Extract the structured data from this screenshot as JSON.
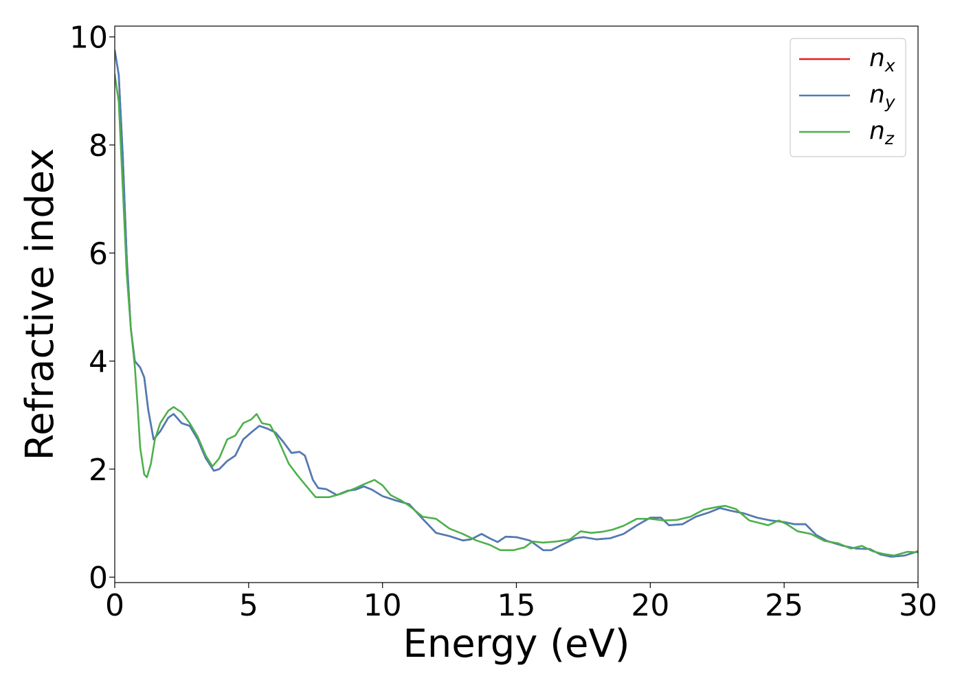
{
  "chart_data": {
    "type": "line",
    "title": "",
    "xlabel": "Energy (eV)",
    "ylabel": "Refractive index",
    "xlim": [
      0,
      30
    ],
    "ylim": [
      -0.1,
      10.2
    ],
    "xticks": [
      0,
      5,
      10,
      15,
      20,
      25,
      30
    ],
    "yticks": [
      0,
      2,
      4,
      6,
      8,
      10
    ],
    "grid": false,
    "legend_position": "top-right",
    "series": [
      {
        "name": "n",
        "subscript": "x",
        "color": "#e41a1c",
        "points": [
          [
            0,
            9.75
          ],
          [
            0.15,
            9.3
          ],
          [
            0.3,
            7.8
          ],
          [
            0.45,
            5.9
          ],
          [
            0.6,
            4.6
          ],
          [
            0.75,
            4.0
          ],
          [
            0.95,
            3.88
          ],
          [
            1.1,
            3.7
          ],
          [
            1.25,
            3.1
          ],
          [
            1.45,
            2.55
          ],
          [
            1.7,
            2.7
          ],
          [
            2.0,
            2.95
          ],
          [
            2.2,
            3.02
          ],
          [
            2.5,
            2.85
          ],
          [
            2.8,
            2.8
          ],
          [
            3.1,
            2.55
          ],
          [
            3.4,
            2.2
          ],
          [
            3.7,
            1.97
          ],
          [
            3.9,
            2.0
          ],
          [
            4.2,
            2.15
          ],
          [
            4.5,
            2.25
          ],
          [
            4.8,
            2.55
          ],
          [
            5.1,
            2.68
          ],
          [
            5.4,
            2.8
          ],
          [
            5.7,
            2.75
          ],
          [
            6.0,
            2.68
          ],
          [
            6.3,
            2.5
          ],
          [
            6.6,
            2.3
          ],
          [
            6.9,
            2.32
          ],
          [
            7.1,
            2.25
          ],
          [
            7.4,
            1.8
          ],
          [
            7.6,
            1.65
          ],
          [
            7.9,
            1.63
          ],
          [
            8.3,
            1.52
          ],
          [
            8.7,
            1.6
          ],
          [
            9.0,
            1.62
          ],
          [
            9.3,
            1.68
          ],
          [
            9.6,
            1.62
          ],
          [
            10.0,
            1.5
          ],
          [
            10.5,
            1.42
          ],
          [
            11.0,
            1.35
          ],
          [
            11.5,
            1.08
          ],
          [
            12.0,
            0.82
          ],
          [
            12.5,
            0.76
          ],
          [
            13.0,
            0.68
          ],
          [
            13.3,
            0.7
          ],
          [
            13.7,
            0.8
          ],
          [
            14.0,
            0.72
          ],
          [
            14.3,
            0.65
          ],
          [
            14.6,
            0.75
          ],
          [
            15.0,
            0.74
          ],
          [
            15.5,
            0.68
          ],
          [
            16.0,
            0.5
          ],
          [
            16.3,
            0.5
          ],
          [
            16.7,
            0.6
          ],
          [
            17.2,
            0.72
          ],
          [
            17.5,
            0.74
          ],
          [
            18.0,
            0.7
          ],
          [
            18.5,
            0.72
          ],
          [
            19.0,
            0.8
          ],
          [
            19.5,
            0.96
          ],
          [
            20.0,
            1.1
          ],
          [
            20.4,
            1.1
          ],
          [
            20.7,
            0.96
          ],
          [
            21.2,
            0.98
          ],
          [
            21.7,
            1.12
          ],
          [
            22.2,
            1.2
          ],
          [
            22.6,
            1.28
          ],
          [
            23.0,
            1.23
          ],
          [
            23.5,
            1.18
          ],
          [
            24.0,
            1.1
          ],
          [
            24.5,
            1.05
          ],
          [
            25.0,
            1.02
          ],
          [
            25.4,
            0.98
          ],
          [
            25.8,
            0.98
          ],
          [
            26.2,
            0.78
          ],
          [
            26.6,
            0.67
          ],
          [
            27.2,
            0.58
          ],
          [
            27.7,
            0.53
          ],
          [
            28.2,
            0.52
          ],
          [
            28.6,
            0.42
          ],
          [
            29.0,
            0.38
          ],
          [
            29.5,
            0.4
          ],
          [
            30.0,
            0.48
          ]
        ]
      },
      {
        "name": "n",
        "subscript": "y",
        "color": "#4a7db8",
        "points": [
          [
            0,
            9.75
          ],
          [
            0.15,
            9.3
          ],
          [
            0.3,
            7.8
          ],
          [
            0.45,
            5.9
          ],
          [
            0.6,
            4.6
          ],
          [
            0.75,
            4.0
          ],
          [
            0.95,
            3.88
          ],
          [
            1.1,
            3.7
          ],
          [
            1.25,
            3.1
          ],
          [
            1.45,
            2.55
          ],
          [
            1.7,
            2.7
          ],
          [
            2.0,
            2.95
          ],
          [
            2.2,
            3.02
          ],
          [
            2.5,
            2.85
          ],
          [
            2.8,
            2.8
          ],
          [
            3.1,
            2.55
          ],
          [
            3.4,
            2.2
          ],
          [
            3.7,
            1.97
          ],
          [
            3.9,
            2.0
          ],
          [
            4.2,
            2.15
          ],
          [
            4.5,
            2.25
          ],
          [
            4.8,
            2.55
          ],
          [
            5.1,
            2.68
          ],
          [
            5.4,
            2.8
          ],
          [
            5.7,
            2.75
          ],
          [
            6.0,
            2.68
          ],
          [
            6.3,
            2.5
          ],
          [
            6.6,
            2.3
          ],
          [
            6.9,
            2.32
          ],
          [
            7.1,
            2.25
          ],
          [
            7.4,
            1.8
          ],
          [
            7.6,
            1.65
          ],
          [
            7.9,
            1.63
          ],
          [
            8.3,
            1.52
          ],
          [
            8.7,
            1.6
          ],
          [
            9.0,
            1.62
          ],
          [
            9.3,
            1.68
          ],
          [
            9.6,
            1.62
          ],
          [
            10.0,
            1.5
          ],
          [
            10.5,
            1.42
          ],
          [
            11.0,
            1.35
          ],
          [
            11.5,
            1.08
          ],
          [
            12.0,
            0.82
          ],
          [
            12.5,
            0.76
          ],
          [
            13.0,
            0.68
          ],
          [
            13.3,
            0.7
          ],
          [
            13.7,
            0.8
          ],
          [
            14.0,
            0.72
          ],
          [
            14.3,
            0.65
          ],
          [
            14.6,
            0.75
          ],
          [
            15.0,
            0.74
          ],
          [
            15.5,
            0.68
          ],
          [
            16.0,
            0.5
          ],
          [
            16.3,
            0.5
          ],
          [
            16.7,
            0.6
          ],
          [
            17.2,
            0.72
          ],
          [
            17.5,
            0.74
          ],
          [
            18.0,
            0.7
          ],
          [
            18.5,
            0.72
          ],
          [
            19.0,
            0.8
          ],
          [
            19.5,
            0.96
          ],
          [
            20.0,
            1.1
          ],
          [
            20.4,
            1.1
          ],
          [
            20.7,
            0.96
          ],
          [
            21.2,
            0.98
          ],
          [
            21.7,
            1.12
          ],
          [
            22.2,
            1.2
          ],
          [
            22.6,
            1.28
          ],
          [
            23.0,
            1.23
          ],
          [
            23.5,
            1.18
          ],
          [
            24.0,
            1.1
          ],
          [
            24.5,
            1.05
          ],
          [
            25.0,
            1.02
          ],
          [
            25.4,
            0.98
          ],
          [
            25.8,
            0.98
          ],
          [
            26.2,
            0.78
          ],
          [
            26.6,
            0.67
          ],
          [
            27.2,
            0.58
          ],
          [
            27.7,
            0.53
          ],
          [
            28.2,
            0.52
          ],
          [
            28.6,
            0.42
          ],
          [
            29.0,
            0.38
          ],
          [
            29.5,
            0.4
          ],
          [
            30.0,
            0.48
          ]
        ]
      },
      {
        "name": "n",
        "subscript": "z",
        "color": "#4daf4a",
        "points": [
          [
            0,
            9.3
          ],
          [
            0.15,
            8.8
          ],
          [
            0.3,
            7.2
          ],
          [
            0.45,
            5.6
          ],
          [
            0.6,
            4.6
          ],
          [
            0.75,
            3.9
          ],
          [
            0.85,
            3.2
          ],
          [
            0.95,
            2.4
          ],
          [
            1.1,
            1.9
          ],
          [
            1.2,
            1.85
          ],
          [
            1.35,
            2.1
          ],
          [
            1.5,
            2.55
          ],
          [
            1.7,
            2.85
          ],
          [
            2.0,
            3.08
          ],
          [
            2.2,
            3.15
          ],
          [
            2.5,
            3.05
          ],
          [
            2.8,
            2.85
          ],
          [
            3.1,
            2.6
          ],
          [
            3.4,
            2.25
          ],
          [
            3.65,
            2.05
          ],
          [
            3.9,
            2.2
          ],
          [
            4.2,
            2.55
          ],
          [
            4.5,
            2.62
          ],
          [
            4.8,
            2.85
          ],
          [
            5.1,
            2.92
          ],
          [
            5.3,
            3.02
          ],
          [
            5.5,
            2.85
          ],
          [
            5.8,
            2.82
          ],
          [
            6.1,
            2.55
          ],
          [
            6.5,
            2.1
          ],
          [
            6.8,
            1.9
          ],
          [
            7.1,
            1.72
          ],
          [
            7.5,
            1.48
          ],
          [
            8.0,
            1.48
          ],
          [
            8.5,
            1.55
          ],
          [
            9.0,
            1.65
          ],
          [
            9.3,
            1.72
          ],
          [
            9.7,
            1.8
          ],
          [
            10.0,
            1.7
          ],
          [
            10.3,
            1.52
          ],
          [
            10.7,
            1.42
          ],
          [
            11.0,
            1.32
          ],
          [
            11.5,
            1.12
          ],
          [
            12.0,
            1.08
          ],
          [
            12.5,
            0.9
          ],
          [
            13.0,
            0.8
          ],
          [
            13.5,
            0.68
          ],
          [
            14.0,
            0.6
          ],
          [
            14.4,
            0.5
          ],
          [
            14.9,
            0.5
          ],
          [
            15.3,
            0.55
          ],
          [
            15.6,
            0.66
          ],
          [
            16.0,
            0.64
          ],
          [
            16.5,
            0.66
          ],
          [
            17.0,
            0.7
          ],
          [
            17.4,
            0.85
          ],
          [
            17.8,
            0.82
          ],
          [
            18.2,
            0.84
          ],
          [
            18.6,
            0.88
          ],
          [
            19.0,
            0.95
          ],
          [
            19.5,
            1.08
          ],
          [
            20.0,
            1.08
          ],
          [
            20.5,
            1.05
          ],
          [
            21.0,
            1.06
          ],
          [
            21.5,
            1.12
          ],
          [
            22.0,
            1.25
          ],
          [
            22.5,
            1.3
          ],
          [
            22.8,
            1.32
          ],
          [
            23.2,
            1.26
          ],
          [
            23.7,
            1.05
          ],
          [
            24.1,
            1.0
          ],
          [
            24.4,
            0.96
          ],
          [
            24.8,
            1.05
          ],
          [
            25.1,
            0.98
          ],
          [
            25.5,
            0.85
          ],
          [
            26.0,
            0.8
          ],
          [
            26.5,
            0.67
          ],
          [
            27.0,
            0.63
          ],
          [
            27.5,
            0.53
          ],
          [
            27.9,
            0.58
          ],
          [
            28.3,
            0.48
          ],
          [
            28.7,
            0.43
          ],
          [
            29.1,
            0.4
          ],
          [
            29.6,
            0.47
          ],
          [
            30.0,
            0.46
          ]
        ]
      }
    ]
  }
}
